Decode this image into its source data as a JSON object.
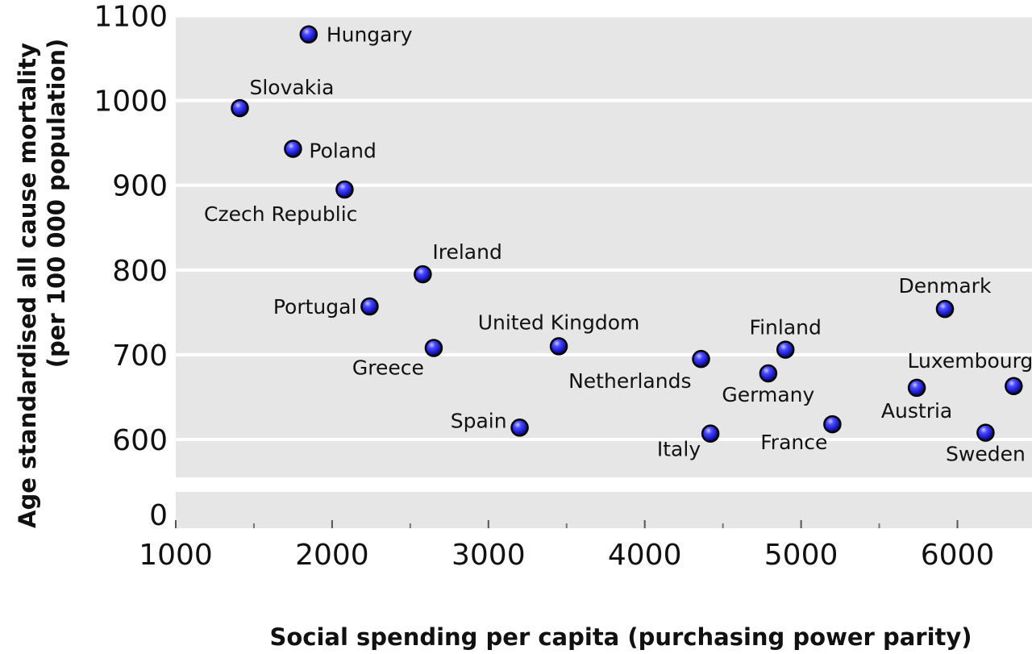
{
  "chart_data": {
    "type": "scatter",
    "title": "",
    "xlabel": "Social spending per capita (purchasing power parity)",
    "ylabel": "Age standardised all cause mortality",
    "ylabel_line2": "(per 100 000 population)",
    "xlim": [
      1000,
      6400
    ],
    "ylim": [
      550,
      1110
    ],
    "y_break": true,
    "x_ticks": [
      "1000",
      "2000",
      "3000",
      "4000",
      "5000",
      "6000"
    ],
    "y_ticks": [
      "600",
      "700",
      "800",
      "900",
      "1000",
      "1100"
    ],
    "y_zero_tick": "0",
    "grid": true,
    "point_color": "#1a1acc",
    "points": [
      {
        "name": "Hungary",
        "x": 1850,
        "y": 1078
      },
      {
        "name": "Slovakia",
        "x": 1410,
        "y": 991
      },
      {
        "name": "Poland",
        "x": 1750,
        "y": 943
      },
      {
        "name": "Czech Republic",
        "x": 2080,
        "y": 895
      },
      {
        "name": "Ireland",
        "x": 2580,
        "y": 795
      },
      {
        "name": "Portugal",
        "x": 2240,
        "y": 757
      },
      {
        "name": "Greece",
        "x": 2650,
        "y": 708
      },
      {
        "name": "United Kingdom",
        "x": 3450,
        "y": 710
      },
      {
        "name": "Spain",
        "x": 3200,
        "y": 614
      },
      {
        "name": "Netherlands",
        "x": 4360,
        "y": 695
      },
      {
        "name": "Italy",
        "x": 4420,
        "y": 607
      },
      {
        "name": "Finland",
        "x": 4900,
        "y": 706
      },
      {
        "name": "Germany",
        "x": 4790,
        "y": 678
      },
      {
        "name": "France",
        "x": 5200,
        "y": 618
      },
      {
        "name": "Denmark",
        "x": 5920,
        "y": 754
      },
      {
        "name": "Austria",
        "x": 5740,
        "y": 661
      },
      {
        "name": "Sweden",
        "x": 6180,
        "y": 608
      },
      {
        "name": "Luxembourg",
        "x": 6360,
        "y": 663
      }
    ]
  }
}
